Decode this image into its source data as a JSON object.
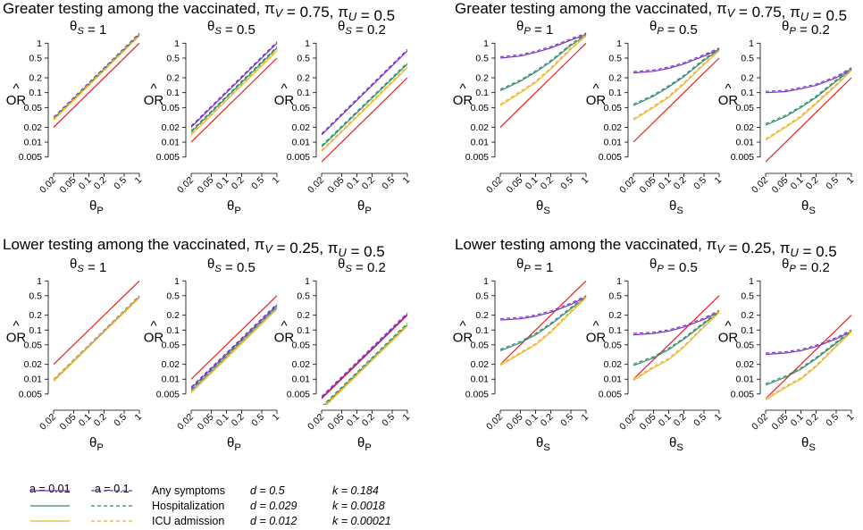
{
  "figure": {
    "groups": [
      {
        "title": "Greater testing among the vaccinated, πV = 0.75, πU = 0.5",
        "xlabel": "θP",
        "ylabel": "OR̂",
        "panels": [
          {
            "title": "θS = 1"
          },
          {
            "title": "θS = 0.5"
          },
          {
            "title": "θS = 0.2"
          }
        ]
      },
      {
        "title": "Greater testing among the vaccinated, πV = 0.75, πU = 0.5",
        "xlabel": "θS",
        "ylabel": "OR̂",
        "panels": [
          {
            "title": "θP = 1"
          },
          {
            "title": "θP = 0.5"
          },
          {
            "title": "θP = 0.2"
          }
        ]
      },
      {
        "title": "Lower testing among the vaccinated, πV = 0.25, πU = 0.5",
        "xlabel": "θP",
        "ylabel": "OR̂",
        "panels": [
          {
            "title": "θS = 1"
          },
          {
            "title": "θS = 0.5"
          },
          {
            "title": "θS = 0.2"
          }
        ]
      },
      {
        "title": "Lower testing among the vaccinated, πV = 0.25, πU = 0.5",
        "xlabel": "θS",
        "ylabel": "OR̂",
        "panels": [
          {
            "title": "θP = 1"
          },
          {
            "title": "θP = 0.5"
          },
          {
            "title": "θP = 0.2"
          }
        ]
      }
    ],
    "legend": {
      "header_solid": "a = 0.01",
      "header_dashed": "a = 0.1",
      "rows": [
        {
          "label": "Any symptoms",
          "d": "d = 0.5",
          "k": "k = 0.184",
          "color": "#7b2fc4"
        },
        {
          "label": "Hospitalization",
          "d": "d = 0.029",
          "k": "k = 0.0018",
          "color": "#2e8b70"
        },
        {
          "label": "ICU admission",
          "d": "d = 0.012",
          "k": "k = 0.00021",
          "color": "#f0b428"
        }
      ],
      "reference_color": "#ee1c1c"
    }
  },
  "chart_data": [
    {
      "type": "line",
      "title": "θS = 1",
      "group": "Greater testing among the vaccinated, πV = 0.75, πU = 0.5",
      "xlabel": "θP",
      "ylabel": "OR̂",
      "xscale": "log",
      "yscale": "log",
      "xlim": [
        0.02,
        1
      ],
      "ylim": [
        0.003,
        1.3
      ],
      "xticks": [
        "0.02",
        "0.05",
        "0.1",
        "0.2",
        "0.5",
        "1"
      ],
      "yticks": [
        "0.005",
        "0.01",
        "0.02",
        "0.05",
        "0.1",
        "0.2",
        "0.5",
        "1"
      ],
      "x": [
        0.02,
        1
      ],
      "series": [
        {
          "name": "reference",
          "color": "#ee1c1c",
          "y": [
            0.02,
            1
          ]
        },
        {
          "name": "Any symptoms",
          "color": "#7b2fc4",
          "y": [
            0.03,
            1.5
          ]
        },
        {
          "name": "Hospitalization",
          "color": "#2e8b70",
          "y": [
            0.029,
            1.45
          ]
        },
        {
          "name": "ICU admission",
          "color": "#f0b428",
          "y": [
            0.028,
            1.4
          ]
        }
      ]
    },
    {
      "type": "line",
      "title": "θS = 0.5",
      "group": "Greater testing among the vaccinated, πV = 0.75, πU = 0.5",
      "xlabel": "θP",
      "ylabel": "OR̂",
      "xscale": "log",
      "yscale": "log",
      "xlim": [
        0.02,
        1
      ],
      "ylim": [
        0.003,
        1.3
      ],
      "x": [
        0.02,
        1
      ],
      "series": [
        {
          "name": "reference",
          "color": "#ee1c1c",
          "y": [
            0.01,
            0.5
          ]
        },
        {
          "name": "Any symptoms",
          "color": "#7b2fc4",
          "y": [
            0.02,
            1.0
          ]
        },
        {
          "name": "Hospitalization",
          "color": "#2e8b70",
          "y": [
            0.016,
            0.8
          ]
        },
        {
          "name": "ICU admission",
          "color": "#f0b428",
          "y": [
            0.014,
            0.7
          ]
        }
      ]
    },
    {
      "type": "line",
      "title": "θS = 0.2",
      "group": "Greater testing among the vaccinated, πV = 0.75, πU = 0.5",
      "xlabel": "θP",
      "ylabel": "OR̂",
      "xscale": "log",
      "yscale": "log",
      "xlim": [
        0.02,
        1
      ],
      "ylim": [
        0.003,
        1.3
      ],
      "x": [
        0.02,
        1
      ],
      "series": [
        {
          "name": "reference",
          "color": "#ee1c1c",
          "y": [
            0.004,
            0.2
          ]
        },
        {
          "name": "Any symptoms",
          "color": "#7b2fc4",
          "y": [
            0.014,
            0.7
          ]
        },
        {
          "name": "Hospitalization",
          "color": "#2e8b70",
          "y": [
            0.008,
            0.38
          ]
        },
        {
          "name": "ICU admission",
          "color": "#f0b428",
          "y": [
            0.0065,
            0.32
          ]
        }
      ]
    },
    {
      "type": "line",
      "title": "θP = 1",
      "group": "Greater testing among the vaccinated, πV = 0.75, πU = 0.5",
      "xlabel": "θS",
      "ylabel": "OR̂",
      "xscale": "log",
      "yscale": "log",
      "xlim": [
        0.02,
        1
      ],
      "ylim": [
        0.003,
        1.3
      ],
      "x": [
        0.02,
        0.05,
        0.1,
        0.2,
        0.5,
        1
      ],
      "series": [
        {
          "name": "reference",
          "color": "#ee1c1c",
          "y": [
            0.02,
            0.05,
            0.1,
            0.2,
            0.5,
            1
          ]
        },
        {
          "name": "Any symptoms",
          "color": "#7b2fc4",
          "y": [
            0.5,
            0.55,
            0.65,
            0.8,
            1.15,
            1.5
          ]
        },
        {
          "name": "Hospitalization",
          "color": "#2e8b70",
          "y": [
            0.11,
            0.17,
            0.26,
            0.42,
            0.9,
            1.45
          ]
        },
        {
          "name": "ICU admission",
          "color": "#f0b428",
          "y": [
            0.055,
            0.1,
            0.16,
            0.3,
            0.75,
            1.4
          ]
        }
      ]
    },
    {
      "type": "line",
      "title": "θP = 0.5",
      "group": "Greater testing among the vaccinated, πV = 0.75, πU = 0.5",
      "xlabel": "θS",
      "ylabel": "OR̂",
      "xscale": "log",
      "yscale": "log",
      "xlim": [
        0.02,
        1
      ],
      "ylim": [
        0.003,
        1.3
      ],
      "x": [
        0.02,
        0.05,
        0.1,
        0.2,
        0.5,
        1
      ],
      "series": [
        {
          "name": "reference",
          "color": "#ee1c1c",
          "y": [
            0.01,
            0.025,
            0.05,
            0.1,
            0.25,
            0.5
          ]
        },
        {
          "name": "Any symptoms",
          "color": "#7b2fc4",
          "y": [
            0.25,
            0.27,
            0.31,
            0.38,
            0.55,
            0.75
          ]
        },
        {
          "name": "Hospitalization",
          "color": "#2e8b70",
          "y": [
            0.055,
            0.085,
            0.13,
            0.21,
            0.45,
            0.73
          ]
        },
        {
          "name": "ICU admission",
          "color": "#f0b428",
          "y": [
            0.028,
            0.05,
            0.08,
            0.15,
            0.37,
            0.7
          ]
        }
      ]
    },
    {
      "type": "line",
      "title": "θP = 0.2",
      "group": "Greater testing among the vaccinated, πV = 0.75, πU = 0.5",
      "xlabel": "θS",
      "ylabel": "OR̂",
      "xscale": "log",
      "yscale": "log",
      "xlim": [
        0.02,
        1
      ],
      "ylim": [
        0.003,
        1.3
      ],
      "x": [
        0.02,
        0.05,
        0.1,
        0.2,
        0.5,
        1
      ],
      "series": [
        {
          "name": "reference",
          "color": "#ee1c1c",
          "y": [
            0.004,
            0.01,
            0.02,
            0.04,
            0.1,
            0.2
          ]
        },
        {
          "name": "Any symptoms",
          "color": "#7b2fc4",
          "y": [
            0.1,
            0.105,
            0.12,
            0.14,
            0.2,
            0.3
          ]
        },
        {
          "name": "Hospitalization",
          "color": "#2e8b70",
          "y": [
            0.022,
            0.033,
            0.05,
            0.08,
            0.17,
            0.29
          ]
        },
        {
          "name": "ICU admission",
          "color": "#f0b428",
          "y": [
            0.011,
            0.02,
            0.032,
            0.06,
            0.14,
            0.28
          ]
        }
      ]
    },
    {
      "type": "line",
      "title": "θS = 1",
      "group": "Lower testing among the vaccinated, πV = 0.25, πU = 0.5",
      "xlabel": "θP",
      "ylabel": "OR̂",
      "xscale": "log",
      "yscale": "log",
      "xlim": [
        0.02,
        1
      ],
      "ylim": [
        0.003,
        1.3
      ],
      "x": [
        0.02,
        1
      ],
      "series": [
        {
          "name": "reference",
          "color": "#ee1c1c",
          "y": [
            0.02,
            1
          ]
        },
        {
          "name": "Any symptoms",
          "color": "#7b2fc4",
          "y": [
            0.0093,
            0.47
          ]
        },
        {
          "name": "Hospitalization",
          "color": "#2e8b70",
          "y": [
            0.0092,
            0.46
          ]
        },
        {
          "name": "ICU admission",
          "color": "#f0b428",
          "y": [
            0.0091,
            0.455
          ]
        }
      ]
    },
    {
      "type": "line",
      "title": "θS = 0.5",
      "group": "Lower testing among the vaccinated, πV = 0.25, πU = 0.5",
      "xlabel": "θP",
      "ylabel": "OR̂",
      "xscale": "log",
      "yscale": "log",
      "xlim": [
        0.02,
        1
      ],
      "ylim": [
        0.003,
        1.3
      ],
      "x": [
        0.02,
        1
      ],
      "series": [
        {
          "name": "reference",
          "color": "#ee1c1c",
          "y": [
            0.01,
            0.5
          ]
        },
        {
          "name": "Any symptoms",
          "color": "#7b2fc4",
          "y": [
            0.0065,
            0.32
          ]
        },
        {
          "name": "Hospitalization",
          "color": "#2e8b70",
          "y": [
            0.0058,
            0.29
          ]
        },
        {
          "name": "ICU admission",
          "color": "#f0b428",
          "y": [
            0.0053,
            0.265
          ]
        }
      ]
    },
    {
      "type": "line",
      "title": "θS = 0.2",
      "group": "Lower testing among the vaccinated, πV = 0.25, πU = 0.5",
      "xlabel": "θP",
      "ylabel": "OR̂",
      "xscale": "log",
      "yscale": "log",
      "xlim": [
        0.02,
        1
      ],
      "ylim": [
        0.003,
        1.3
      ],
      "x": [
        0.02,
        1
      ],
      "series": [
        {
          "name": "reference",
          "color": "#ee1c1c",
          "y": [
            0.004,
            0.2
          ]
        },
        {
          "name": "Any symptoms",
          "color": "#7b2fc4",
          "y": [
            0.0042,
            0.21
          ]
        },
        {
          "name": "Hospitalization",
          "color": "#2e8b70",
          "y": [
            0.0026,
            0.13
          ]
        },
        {
          "name": "ICU admission",
          "color": "#f0b428",
          "y": [
            0.0024,
            0.12
          ]
        }
      ]
    },
    {
      "type": "line",
      "title": "θP = 1",
      "group": "Lower testing among the vaccinated, πV = 0.25, πU = 0.5",
      "xlabel": "θS",
      "ylabel": "OR̂",
      "xscale": "log",
      "yscale": "log",
      "xlim": [
        0.02,
        1
      ],
      "ylim": [
        0.003,
        1.3
      ],
      "x": [
        0.02,
        0.05,
        0.1,
        0.2,
        0.5,
        1
      ],
      "series": [
        {
          "name": "reference",
          "color": "#ee1c1c",
          "y": [
            0.02,
            0.05,
            0.1,
            0.2,
            0.5,
            1
          ]
        },
        {
          "name": "Any symptoms",
          "color": "#7b2fc4",
          "y": [
            0.16,
            0.17,
            0.19,
            0.23,
            0.33,
            0.47
          ]
        },
        {
          "name": "Hospitalization",
          "color": "#2e8b70",
          "y": [
            0.038,
            0.055,
            0.08,
            0.13,
            0.27,
            0.46
          ]
        },
        {
          "name": "ICU admission",
          "color": "#f0b428",
          "y": [
            0.019,
            0.033,
            0.05,
            0.09,
            0.23,
            0.455
          ]
        }
      ]
    },
    {
      "type": "line",
      "title": "θP = 0.5",
      "group": "Lower testing among the vaccinated, πV = 0.25, πU = 0.5",
      "xlabel": "θS",
      "ylabel": "OR̂",
      "xscale": "log",
      "yscale": "log",
      "xlim": [
        0.02,
        1
      ],
      "ylim": [
        0.003,
        1.3
      ],
      "x": [
        0.02,
        0.05,
        0.1,
        0.2,
        0.5,
        1
      ],
      "series": [
        {
          "name": "reference",
          "color": "#ee1c1c",
          "y": [
            0.01,
            0.025,
            0.05,
            0.1,
            0.25,
            0.5
          ]
        },
        {
          "name": "Any symptoms",
          "color": "#7b2fc4",
          "y": [
            0.08,
            0.085,
            0.095,
            0.115,
            0.165,
            0.235
          ]
        },
        {
          "name": "Hospitalization",
          "color": "#2e8b70",
          "y": [
            0.019,
            0.027,
            0.04,
            0.065,
            0.135,
            0.23
          ]
        },
        {
          "name": "ICU admission",
          "color": "#f0b428",
          "y": [
            0.0095,
            0.017,
            0.025,
            0.045,
            0.115,
            0.228
          ]
        }
      ]
    },
    {
      "type": "line",
      "title": "θP = 0.2",
      "group": "Lower testing among the vaccinated, πV = 0.25, πU = 0.5",
      "xlabel": "θS",
      "ylabel": "OR̂",
      "xscale": "log",
      "yscale": "log",
      "xlim": [
        0.02,
        1
      ],
      "ylim": [
        0.003,
        1.3
      ],
      "x": [
        0.02,
        0.05,
        0.1,
        0.2,
        0.5,
        1
      ],
      "series": [
        {
          "name": "reference",
          "color": "#ee1c1c",
          "y": [
            0.004,
            0.01,
            0.02,
            0.04,
            0.1,
            0.2
          ]
        },
        {
          "name": "Any symptoms",
          "color": "#7b2fc4",
          "y": [
            0.032,
            0.034,
            0.038,
            0.046,
            0.066,
            0.094
          ]
        },
        {
          "name": "Hospitalization",
          "color": "#2e8b70",
          "y": [
            0.0076,
            0.011,
            0.016,
            0.026,
            0.054,
            0.092
          ]
        },
        {
          "name": "ICU admission",
          "color": "#f0b428",
          "y": [
            0.0038,
            0.0068,
            0.01,
            0.018,
            0.046,
            0.091
          ]
        }
      ]
    }
  ]
}
